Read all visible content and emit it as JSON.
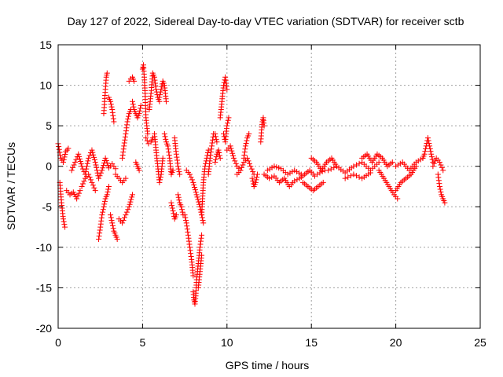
{
  "chart_data": {
    "type": "scatter",
    "title": "Day 127 of 2022, Sidereal Day-to-day VTEC variation (SDTVAR) for receiver sctb",
    "xlabel": "GPS time / hours",
    "ylabel": "SDTVAR / TECUs",
    "xlim": [
      0,
      25
    ],
    "ylim": [
      -20,
      15
    ],
    "xticks": [
      0,
      5,
      10,
      15,
      20,
      25
    ],
    "yticks": [
      -20,
      -15,
      -10,
      -5,
      0,
      5,
      10,
      15
    ],
    "grid": true,
    "marker": "+",
    "series": [
      {
        "name": "SDTVAR",
        "color": "#ff0000",
        "segments": [
          {
            "x": [
              0.0,
              0.15,
              0.3,
              0.45,
              0.6
            ],
            "y": [
              2.8,
              1.0,
              0.5,
              1.8,
              2.2
            ]
          },
          {
            "x": [
              0.1,
              0.2,
              0.3,
              0.4
            ],
            "y": [
              -2.0,
              -4.5,
              -6.5,
              -7.5
            ]
          },
          {
            "x": [
              0.5,
              0.7,
              0.9,
              1.1,
              1.3
            ],
            "y": [
              -3.0,
              -3.5,
              -3.2,
              -4.0,
              -3.0
            ]
          },
          {
            "x": [
              0.8,
              1.0,
              1.2,
              1.4,
              1.6,
              1.8,
              2.0,
              2.2,
              2.4,
              2.6,
              2.8,
              3.0,
              3.2,
              3.4
            ],
            "y": [
              -0.5,
              0.5,
              1.5,
              0.0,
              -1.0,
              1.0,
              2.0,
              0.5,
              -1.5,
              -0.5,
              1.0,
              -0.2,
              0.3,
              -0.3
            ]
          },
          {
            "x": [
              1.4,
              1.6,
              1.8,
              2.0,
              2.2
            ],
            "y": [
              -2.5,
              -1.5,
              -1.0,
              -2.0,
              -3.0
            ]
          },
          {
            "x": [
              2.4,
              2.5,
              2.6,
              2.7,
              2.8,
              2.9,
              3.0
            ],
            "y": [
              -9.0,
              -7.5,
              -6.0,
              -5.0,
              -4.0,
              -3.5,
              -2.5
            ]
          },
          {
            "x": [
              2.7,
              2.75,
              2.8,
              2.85,
              2.9
            ],
            "y": [
              6.5,
              8.0,
              9.5,
              11.0,
              11.5
            ]
          },
          {
            "x": [
              3.0,
              3.1,
              3.2,
              3.3
            ],
            "y": [
              8.5,
              8.0,
              7.0,
              5.5
            ]
          },
          {
            "x": [
              3.1,
              3.2,
              3.3,
              3.4,
              3.5
            ],
            "y": [
              -6.0,
              -7.0,
              -8.0,
              -8.5,
              -9.0
            ]
          },
          {
            "x": [
              3.4,
              3.6,
              3.8,
              4.0
            ],
            "y": [
              -1.0,
              -1.5,
              -2.0,
              -1.5
            ]
          },
          {
            "x": [
              3.6,
              3.8,
              4.0,
              4.2,
              4.4
            ],
            "y": [
              -6.5,
              -7.0,
              -6.0,
              -5.0,
              -3.5
            ]
          },
          {
            "x": [
              3.8,
              3.9,
              4.0,
              4.1,
              4.2,
              4.3
            ],
            "y": [
              1.0,
              2.5,
              4.0,
              5.5,
              6.5,
              7.0
            ]
          },
          {
            "x": [
              4.2,
              4.3,
              4.4,
              4.5
            ],
            "y": [
              10.5,
              10.8,
              11.0,
              10.5
            ]
          },
          {
            "x": [
              4.4,
              4.5,
              4.6,
              4.7,
              4.8,
              4.9
            ],
            "y": [
              8.0,
              7.0,
              6.5,
              6.0,
              6.5,
              7.5
            ]
          },
          {
            "x": [
              4.6,
              4.7,
              4.8
            ],
            "y": [
              0.5,
              0.0,
              -0.5
            ]
          },
          {
            "x": [
              5.0,
              5.05,
              5.1,
              5.15,
              5.2,
              5.3
            ],
            "y": [
              12.0,
              12.5,
              11.0,
              9.0,
              6.0,
              4.0
            ]
          },
          {
            "x": [
              5.2,
              5.35,
              5.5,
              5.6
            ],
            "y": [
              3.5,
              2.8,
              3.0,
              3.5
            ]
          },
          {
            "x": [
              5.4,
              5.5,
              5.6,
              5.7,
              5.8,
              5.9,
              6.0
            ],
            "y": [
              7.0,
              9.0,
              11.5,
              11.0,
              9.5,
              8.5,
              8.0
            ]
          },
          {
            "x": [
              5.7,
              5.8,
              5.9,
              6.0,
              6.1,
              6.2
            ],
            "y": [
              4.0,
              2.0,
              0.0,
              -2.0,
              -1.0,
              1.0
            ]
          },
          {
            "x": [
              6.0,
              6.1,
              6.2,
              6.3,
              6.4
            ],
            "y": [
              8.5,
              9.5,
              10.5,
              10.0,
              8.0
            ]
          },
          {
            "x": [
              6.3,
              6.4,
              6.5,
              6.6,
              6.7,
              6.8
            ],
            "y": [
              4.0,
              3.0,
              2.5,
              1.0,
              -1.0,
              -0.5
            ]
          },
          {
            "x": [
              6.7,
              6.8,
              6.9,
              7.0
            ],
            "y": [
              -4.5,
              -5.5,
              -6.5,
              -6.0
            ]
          },
          {
            "x": [
              6.9,
              7.0,
              7.1,
              7.2
            ],
            "y": [
              3.5,
              1.5,
              0.0,
              -1.0
            ]
          },
          {
            "x": [
              7.1,
              7.2,
              7.3,
              7.4
            ],
            "y": [
              -3.5,
              -4.5,
              -5.0,
              -6.0
            ]
          },
          {
            "x": [
              7.6,
              7.8,
              8.0,
              8.2,
              8.4,
              8.6
            ],
            "y": [
              -0.5,
              -1.0,
              -2.0,
              -3.5,
              -5.0,
              -7.0
            ]
          },
          {
            "x": [
              7.5,
              7.6,
              7.7,
              7.8,
              7.9,
              8.0
            ],
            "y": [
              -6.0,
              -7.0,
              -8.5,
              -10.0,
              -11.5,
              -13.5
            ]
          },
          {
            "x": [
              8.0,
              8.05,
              8.1,
              8.15,
              8.2,
              8.3,
              8.4,
              8.5
            ],
            "y": [
              -15.5,
              -16.5,
              -17.0,
              -16.0,
              -14.0,
              -12.0,
              -10.0,
              -8.5
            ]
          },
          {
            "x": [
              8.3,
              8.35,
              8.4,
              8.45,
              8.5
            ],
            "y": [
              -15.0,
              -14.0,
              -13.0,
              -12.0,
              -11.0
            ]
          },
          {
            "x": [
              8.5,
              8.55,
              8.6,
              8.7,
              8.8,
              8.9
            ],
            "y": [
              -6.0,
              -4.0,
              -2.0,
              0.0,
              1.0,
              2.0
            ]
          },
          {
            "x": [
              8.9,
              9.0,
              9.1,
              9.2,
              9.3,
              9.4
            ],
            "y": [
              -1.0,
              1.0,
              2.5,
              4.0,
              4.0,
              3.0
            ]
          },
          {
            "x": [
              9.3,
              9.4,
              9.5,
              9.6
            ],
            "y": [
              0.5,
              1.5,
              2.0,
              1.0
            ]
          },
          {
            "x": [
              9.6,
              9.7,
              9.8,
              9.9,
              10.0
            ],
            "y": [
              6.0,
              8.0,
              10.0,
              11.0,
              9.5
            ]
          },
          {
            "x": [
              9.8,
              9.9,
              10.0,
              10.1
            ],
            "y": [
              4.0,
              3.0,
              5.0,
              6.0
            ]
          },
          {
            "x": [
              10.0,
              10.2,
              10.4,
              10.6,
              10.8
            ],
            "y": [
              2.0,
              2.5,
              1.0,
              0.0,
              -0.5
            ]
          },
          {
            "x": [
              10.6,
              10.8,
              11.0,
              11.2,
              11.4,
              11.6
            ],
            "y": [
              -1.0,
              -0.5,
              0.5,
              1.0,
              0.0,
              -1.0
            ]
          },
          {
            "x": [
              11.0,
              11.1,
              11.2,
              11.3
            ],
            "y": [
              1.0,
              2.5,
              3.5,
              4.0
            ]
          },
          {
            "x": [
              11.5,
              11.6,
              11.7,
              11.8
            ],
            "y": [
              -1.5,
              -2.5,
              -2.0,
              -1.0
            ]
          },
          {
            "x": [
              12.0,
              12.05,
              12.1,
              12.15,
              12.2
            ],
            "y": [
              3.0,
              4.5,
              5.5,
              6.0,
              5.0
            ]
          },
          {
            "x": [
              12.2,
              12.5,
              12.8,
              13.1,
              13.4,
              13.7,
              14.0,
              14.3,
              14.6,
              14.9,
              15.2,
              15.5,
              15.8
            ],
            "y": [
              -1.0,
              -1.5,
              -1.2,
              -2.0,
              -1.5,
              -2.5,
              -1.8,
              -1.5,
              -1.0,
              -0.5,
              -1.2,
              -0.8,
              -0.5
            ]
          },
          {
            "x": [
              12.4,
              12.8,
              13.2,
              13.6,
              14.0,
              14.4
            ],
            "y": [
              -0.5,
              0.0,
              -0.3,
              -1.0,
              -0.5,
              -1.0
            ]
          },
          {
            "x": [
              14.5,
              14.8,
              15.1,
              15.4,
              15.7
            ],
            "y": [
              -2.0,
              -2.5,
              -3.0,
              -2.5,
              -2.0
            ]
          },
          {
            "x": [
              15.0,
              15.3,
              15.6,
              15.9,
              16.2,
              16.5
            ],
            "y": [
              1.0,
              0.5,
              -0.5,
              0.5,
              1.0,
              0.0
            ]
          },
          {
            "x": [
              16.0,
              16.5,
              17.0,
              17.5,
              18.0,
              18.5,
              19.0
            ],
            "y": [
              -0.5,
              0.0,
              -0.8,
              0.0,
              0.5,
              -0.5,
              0.5
            ]
          },
          {
            "x": [
              17.0,
              17.5,
              18.0,
              18.5
            ],
            "y": [
              -1.5,
              -1.0,
              -1.5,
              -0.8
            ]
          },
          {
            "x": [
              18.0,
              18.3,
              18.6,
              18.9,
              19.2,
              19.5,
              19.8
            ],
            "y": [
              1.0,
              1.5,
              0.5,
              1.5,
              1.0,
              0.0,
              0.5
            ]
          },
          {
            "x": [
              19.0,
              19.3,
              19.6,
              19.9,
              20.1
            ],
            "y": [
              -0.5,
              -1.5,
              -2.5,
              -3.5,
              -4.0
            ]
          },
          {
            "x": [
              20.0,
              20.3,
              20.6,
              20.9,
              21.2
            ],
            "y": [
              -3.0,
              -2.0,
              -1.5,
              -1.0,
              0.0
            ]
          },
          {
            "x": [
              20.0,
              20.4,
              20.8,
              21.2,
              21.6
            ],
            "y": [
              0.0,
              0.5,
              -0.5,
              0.5,
              1.0
            ]
          },
          {
            "x": [
              21.6,
              21.7,
              21.8,
              21.9,
              22.0,
              22.1,
              22.2
            ],
            "y": [
              1.0,
              1.5,
              2.5,
              3.5,
              2.5,
              1.5,
              0.5
            ]
          },
          {
            "x": [
              22.2,
              22.4,
              22.6,
              22.8
            ],
            "y": [
              0.0,
              1.0,
              0.5,
              -0.5
            ]
          },
          {
            "x": [
              22.5,
              22.6,
              22.7,
              22.8,
              22.9
            ],
            "y": [
              -1.0,
              -2.5,
              -3.5,
              -4.0,
              -4.5
            ]
          }
        ]
      }
    ]
  }
}
